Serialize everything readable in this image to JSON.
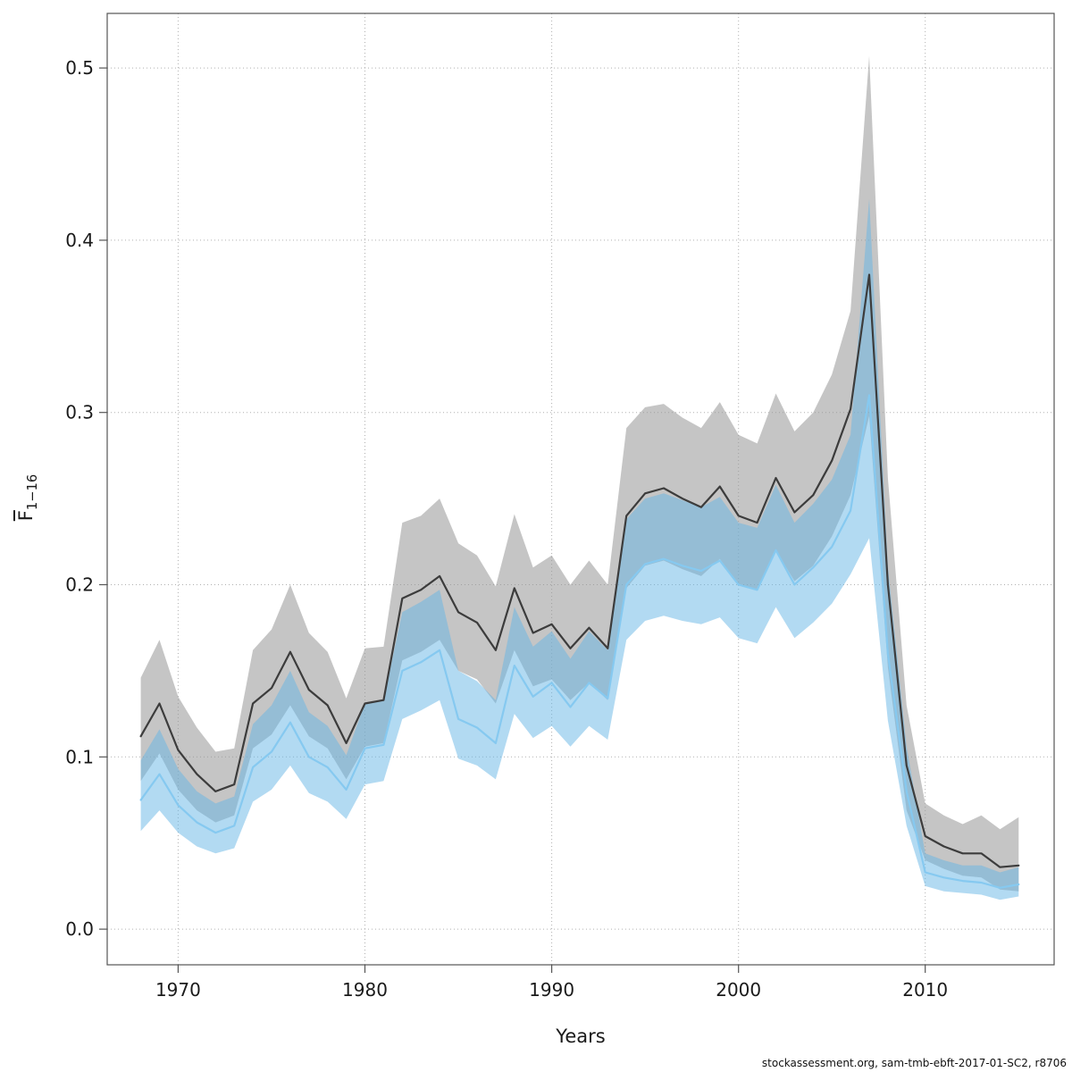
{
  "footer": {
    "text": "stockassessment.org, sam-tmb-ebft-2017-01-SC2, r8706"
  },
  "chart_data": {
    "type": "line",
    "title": "",
    "xlabel": "Years",
    "ylabel_main": "F",
    "ylabel_sub": "1−16",
    "grid": "dotted",
    "legend": "none",
    "xlim": [
      1966.2,
      2016.9
    ],
    "ylim": [
      -0.0207,
      0.5317
    ],
    "xticks": [
      1970,
      1980,
      1990,
      2000,
      2010
    ],
    "xtick_labels": [
      "1970",
      "1980",
      "1990",
      "2000",
      "2010"
    ],
    "yticks": [
      0.0,
      0.1,
      0.2,
      0.3,
      0.4,
      0.5
    ],
    "ytick_labels": [
      "0.0",
      "0.1",
      "0.2",
      "0.3",
      "0.4",
      "0.5"
    ],
    "colors": {
      "grid": "#b0b0b0",
      "axis": "#555555",
      "text": "#1a1a1a"
    },
    "x": [
      1968,
      1969,
      1970,
      1971,
      1972,
      1973,
      1974,
      1975,
      1976,
      1977,
      1978,
      1979,
      1980,
      1981,
      1982,
      1983,
      1984,
      1985,
      1986,
      1987,
      1988,
      1989,
      1990,
      1991,
      1992,
      1993,
      1994,
      1995,
      1996,
      1997,
      1998,
      1999,
      2000,
      2001,
      2002,
      2003,
      2004,
      2005,
      2006,
      2007,
      2008,
      2009,
      2010,
      2011,
      2012,
      2013,
      2014,
      2015
    ],
    "series": [
      {
        "name": "gray-run",
        "line_color": "#3c3c3c",
        "band_color": "#969696",
        "band_opacity": 0.55,
        "values": [
          0.112,
          0.131,
          0.104,
          0.09,
          0.08,
          0.084,
          0.131,
          0.14,
          0.161,
          0.139,
          0.13,
          0.108,
          0.131,
          0.133,
          0.192,
          0.197,
          0.205,
          0.184,
          0.178,
          0.162,
          0.198,
          0.172,
          0.177,
          0.163,
          0.175,
          0.163,
          0.24,
          0.253,
          0.256,
          0.25,
          0.245,
          0.257,
          0.24,
          0.236,
          0.262,
          0.242,
          0.252,
          0.272,
          0.302,
          0.38,
          0.2,
          0.095,
          0.054,
          0.048,
          0.044,
          0.044,
          0.036,
          0.037
        ],
        "upper": [
          0.146,
          0.168,
          0.135,
          0.117,
          0.103,
          0.105,
          0.162,
          0.174,
          0.2,
          0.172,
          0.161,
          0.134,
          0.163,
          0.164,
          0.236,
          0.24,
          0.25,
          0.224,
          0.217,
          0.199,
          0.241,
          0.21,
          0.217,
          0.2,
          0.214,
          0.2,
          0.291,
          0.303,
          0.305,
          0.297,
          0.291,
          0.306,
          0.287,
          0.282,
          0.311,
          0.289,
          0.3,
          0.322,
          0.359,
          0.507,
          0.262,
          0.13,
          0.073,
          0.066,
          0.061,
          0.066,
          0.058,
          0.065
        ],
        "lower": [
          0.086,
          0.102,
          0.081,
          0.069,
          0.062,
          0.066,
          0.105,
          0.113,
          0.13,
          0.112,
          0.105,
          0.087,
          0.106,
          0.108,
          0.156,
          0.161,
          0.168,
          0.15,
          0.145,
          0.131,
          0.162,
          0.141,
          0.145,
          0.133,
          0.143,
          0.133,
          0.198,
          0.211,
          0.214,
          0.209,
          0.205,
          0.215,
          0.2,
          0.197,
          0.22,
          0.202,
          0.211,
          0.228,
          0.252,
          0.298,
          0.152,
          0.069,
          0.04,
          0.035,
          0.031,
          0.03,
          0.023,
          0.022
        ]
      },
      {
        "name": "blue-run",
        "line_color": "#86c9f0",
        "band_color": "#66b6e6",
        "band_opacity": 0.5,
        "values": [
          0.075,
          0.09,
          0.072,
          0.062,
          0.056,
          0.06,
          0.094,
          0.103,
          0.12,
          0.1,
          0.094,
          0.081,
          0.105,
          0.107,
          0.15,
          0.155,
          0.162,
          0.122,
          0.117,
          0.108,
          0.153,
          0.135,
          0.143,
          0.129,
          0.143,
          0.134,
          0.2,
          0.212,
          0.215,
          0.211,
          0.208,
          0.214,
          0.2,
          0.197,
          0.22,
          0.2,
          0.21,
          0.222,
          0.243,
          0.31,
          0.16,
          0.08,
          0.033,
          0.03,
          0.028,
          0.027,
          0.024,
          0.026
        ],
        "upper": [
          0.098,
          0.116,
          0.093,
          0.08,
          0.073,
          0.077,
          0.119,
          0.13,
          0.15,
          0.126,
          0.118,
          0.101,
          0.131,
          0.133,
          0.184,
          0.19,
          0.197,
          0.15,
          0.144,
          0.133,
          0.187,
          0.164,
          0.173,
          0.157,
          0.173,
          0.162,
          0.238,
          0.25,
          0.253,
          0.249,
          0.245,
          0.251,
          0.236,
          0.233,
          0.258,
          0.236,
          0.247,
          0.261,
          0.287,
          0.424,
          0.21,
          0.106,
          0.044,
          0.04,
          0.037,
          0.037,
          0.033,
          0.036
        ],
        "lower": [
          0.057,
          0.069,
          0.056,
          0.048,
          0.044,
          0.047,
          0.074,
          0.081,
          0.095,
          0.079,
          0.074,
          0.064,
          0.084,
          0.086,
          0.122,
          0.127,
          0.133,
          0.099,
          0.095,
          0.087,
          0.125,
          0.111,
          0.118,
          0.106,
          0.118,
          0.11,
          0.168,
          0.179,
          0.182,
          0.179,
          0.177,
          0.181,
          0.169,
          0.166,
          0.187,
          0.169,
          0.178,
          0.189,
          0.206,
          0.227,
          0.121,
          0.06,
          0.025,
          0.022,
          0.021,
          0.02,
          0.017,
          0.019
        ]
      }
    ]
  }
}
